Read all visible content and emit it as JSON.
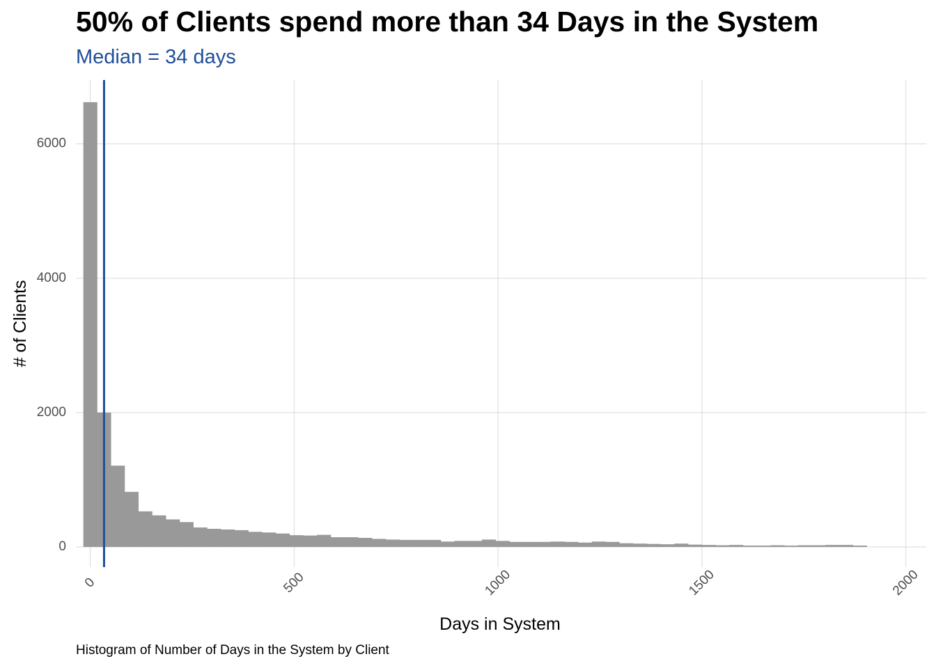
{
  "chart_data": {
    "type": "bar",
    "title": "50% of Clients spend more than 34 Days in the System",
    "subtitle": "Median =  34 days",
    "caption": "Histogram of Number of Days in the System by Client",
    "xlabel": "Days in System",
    "ylabel": "# of Clients",
    "xlim": [
      -35,
      2050
    ],
    "ylim": [
      -300,
      6950
    ],
    "x_ticks": [
      0,
      500,
      1000,
      1500,
      2000
    ],
    "y_ticks": [
      0,
      2000,
      4000,
      6000
    ],
    "x_tick_labels": [
      "0",
      "500",
      "1000",
      "1500",
      "2000"
    ],
    "y_tick_labels": [
      "0",
      "2000",
      "4000",
      "6000"
    ],
    "bin_width": 33.7,
    "bin_start": -16.8,
    "values": [
      6620,
      2000,
      1210,
      820,
      530,
      470,
      410,
      370,
      290,
      270,
      260,
      250,
      225,
      215,
      200,
      175,
      170,
      180,
      145,
      145,
      135,
      120,
      110,
      105,
      105,
      105,
      80,
      90,
      90,
      110,
      90,
      75,
      75,
      75,
      80,
      75,
      65,
      80,
      75,
      55,
      50,
      45,
      40,
      50,
      35,
      30,
      25,
      30,
      20,
      20,
      25,
      20,
      25,
      25,
      30,
      30,
      20
    ],
    "median_line": 34,
    "grid": true,
    "colors": {
      "bars": "#999999",
      "median": "#1f4e98",
      "subtitle": "#1f4e98",
      "grid": "#d9d9d9",
      "tick_labels": "#4d4d4d"
    }
  }
}
